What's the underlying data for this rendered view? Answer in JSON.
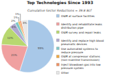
{
  "chart_data": {
    "type": "pie",
    "title": "Top Technologies Since 1993",
    "subtitle": "Cumulative Sector Reductions = 39.8 Bcf",
    "categories": [
      "O&M at surface facilities",
      "Identify and rehabilitate leaks\ndistribution pipe",
      "O&M survey and repair leaks",
      "Identify and replace high blood\npneumatic devices",
      "Use automated systems to\nreduce pressure",
      "O&M at compressor stations\n(non-mainline transmission)",
      "Inject blowdown gas into low\npressure system",
      "Other"
    ],
    "values": [
      55,
      21,
      12,
      4,
      2,
      1,
      1,
      4
    ],
    "value_labels": [
      "55%",
      "21%",
      "12%",
      "4%",
      "2%",
      "1%",
      "1%",
      "4%"
    ],
    "colors": [
      "#a8c8e8",
      "#f0a0a0",
      "#b8d870",
      "#b0a8d0",
      "#80c8c8",
      "#f0a840",
      "#f09060",
      "#e8e8e8"
    ],
    "legend": "right",
    "data_labels": true
  }
}
